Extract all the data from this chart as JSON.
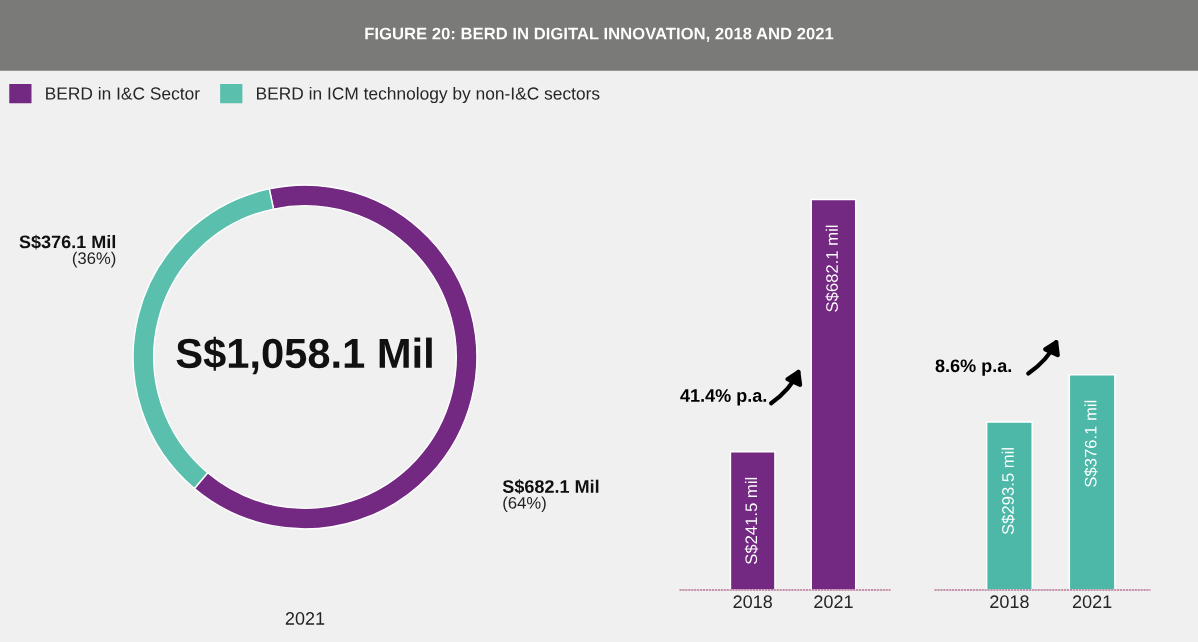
{
  "chart_data": [
    {
      "type": "donut",
      "title": "FIGURE 20: BERD IN DIGITAL INNOVATION, 2018 AND 2021",
      "legend": "top",
      "categories": [
        "BERD in I&C Sector",
        "BERD in ICM technology by non-I&C sectors"
      ],
      "values": [
        682.1,
        376.1
      ],
      "colors": [
        "#732882",
        "#5bbfae"
      ],
      "value_labels": [
        "S$682.1 Mil\n(64%)",
        "S$376.1 Mil\n(36%)"
      ],
      "annotations": [
        "S$1,058.1 Mil"
      ],
      "xlabel": "2021"
    },
    {
      "type": "bar",
      "categories": [
        "2018",
        "2021"
      ],
      "values": [
        241.5,
        682.1
      ],
      "color": "#732882",
      "tick_labels": "x",
      "value_labels": [
        "S$241.5 mil",
        "S$682.1 mil"
      ],
      "annotations": [
        "41.4% p.a."
      ]
    },
    {
      "type": "bar",
      "categories": [
        "2018",
        "2021"
      ],
      "values": [
        293.5,
        376.1
      ],
      "color": "#4db8a8",
      "tick_labels": "x",
      "value_labels": [
        "S$293.5 mil",
        "S$376.1 mil"
      ],
      "annotations": [
        "8.6% p.a."
      ]
    }
  ]
}
